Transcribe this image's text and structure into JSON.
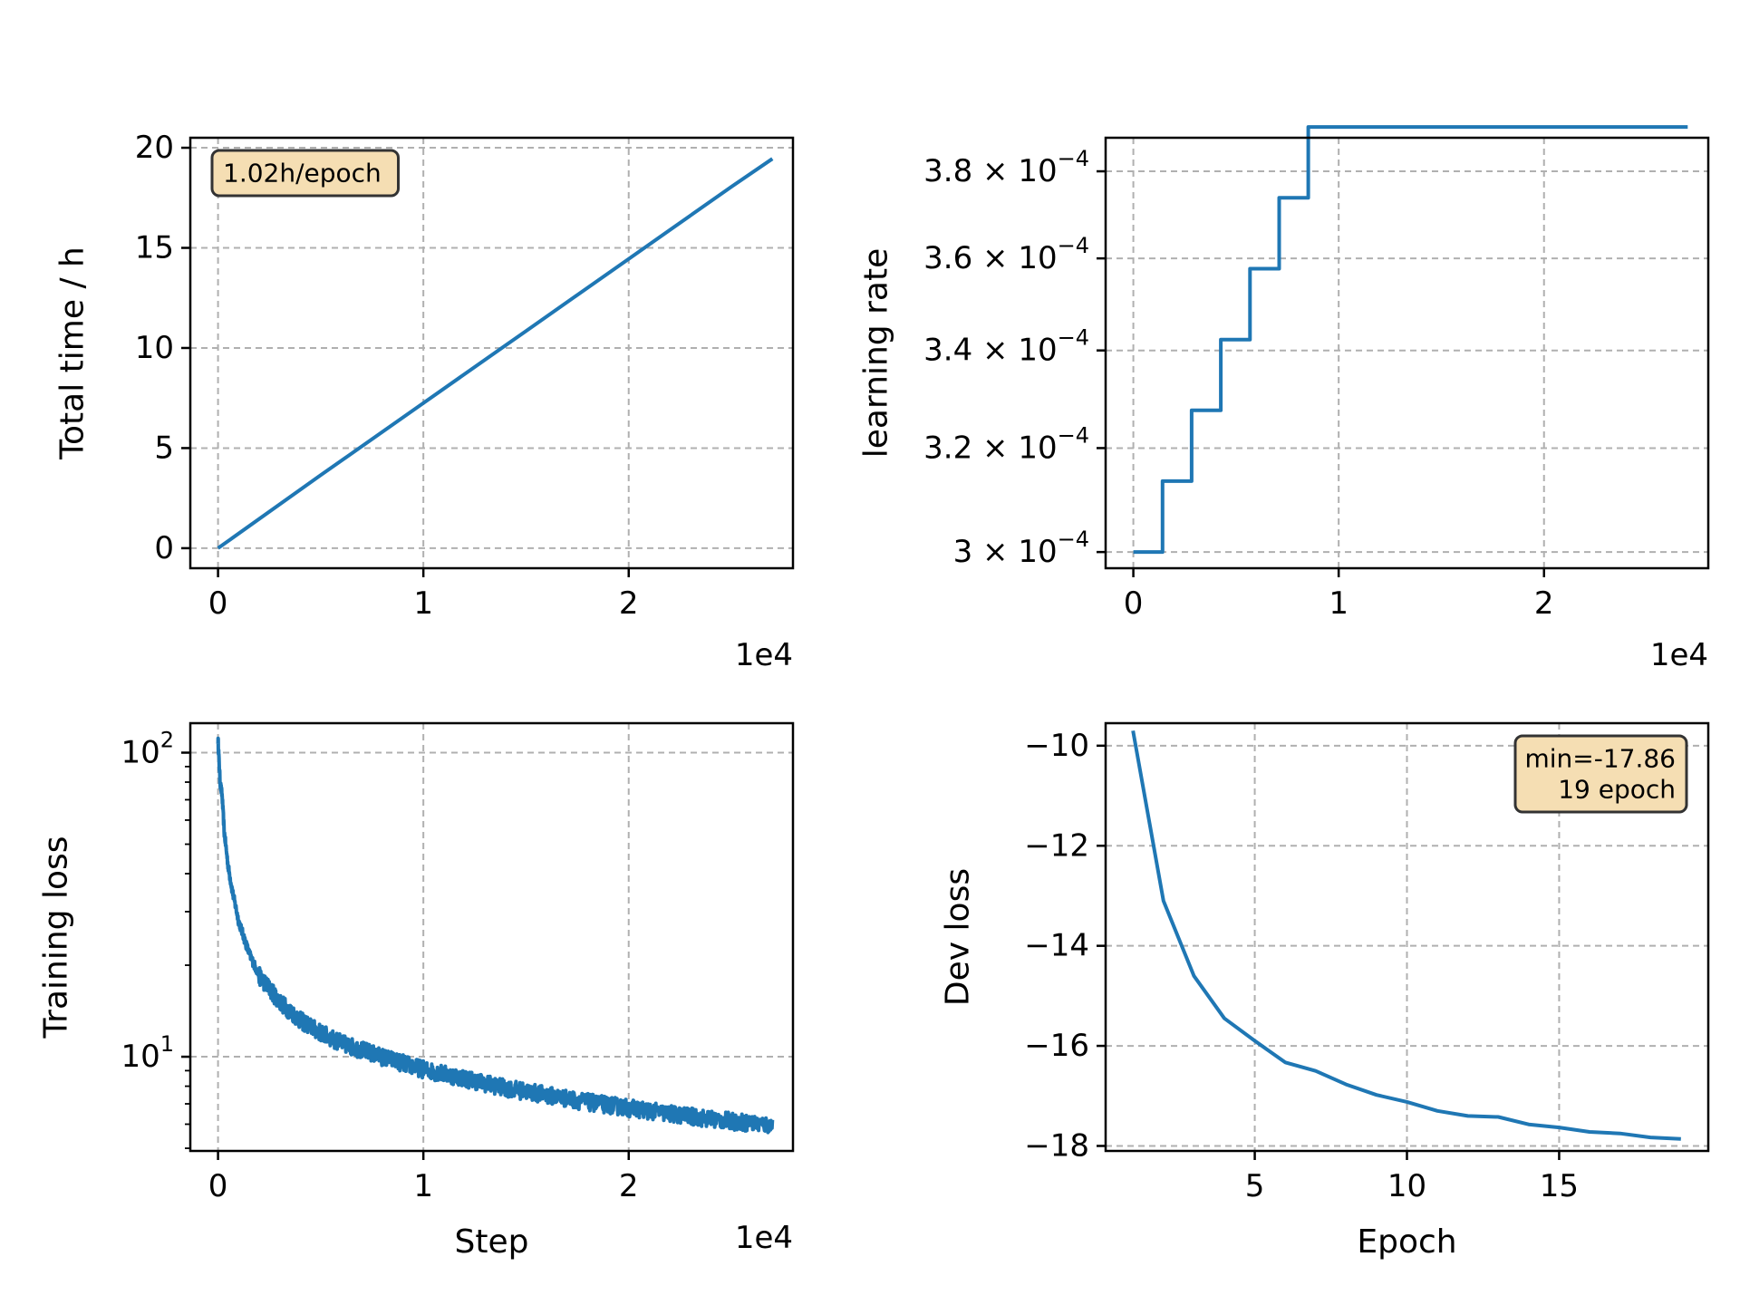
{
  "chart_data": [
    {
      "id": "total-time",
      "type": "line",
      "xlabel": "",
      "ylabel": "Total time / h",
      "xlim": [
        -1350,
        28000
      ],
      "ylim": [
        -1,
        20.5
      ],
      "xticks": [
        0,
        10000,
        20000
      ],
      "xtick_labels": [
        "0",
        "1",
        "2"
      ],
      "x_offset_label": "1e4",
      "yticks": [
        0,
        5,
        10,
        15,
        20
      ],
      "ytick_labels": [
        "0",
        "5",
        "10",
        "15",
        "20"
      ],
      "grid": true,
      "annotation": {
        "lines": [
          "1.02h/epoch"
        ],
        "placement": "top-left"
      },
      "series": [
        {
          "x": [
            0,
            5000,
            10000,
            15000,
            20000,
            25000,
            27000
          ],
          "y": [
            0,
            3.65,
            7.25,
            10.85,
            14.45,
            18.05,
            19.45
          ]
        }
      ]
    },
    {
      "id": "learning-rate",
      "type": "line",
      "xlabel": "",
      "ylabel": "learning rate",
      "y_scale": "log",
      "xlim": [
        -1350,
        28000
      ],
      "ylim": [
        0.000297,
        0.000388
      ],
      "xticks": [
        0,
        10000,
        20000
      ],
      "xtick_labels": [
        "0",
        "1",
        "2"
      ],
      "x_offset_label": "1e4",
      "yticks": [
        0.0003,
        0.00032,
        0.00034,
        0.00036,
        0.00038
      ],
      "ytick_mantissas": [
        "3",
        "3.2",
        "3.4",
        "3.6",
        "3.8"
      ],
      "ytick_base": "10",
      "ytick_exponent": "−4",
      "grid": true,
      "step": true,
      "series": [
        {
          "x": [
            0,
            1420,
            2840,
            4260,
            5680,
            7100,
            8520,
            27000
          ],
          "y": [
            0.0003,
            0.0003135,
            0.0003276,
            0.0003423,
            0.0003577,
            0.0003738,
            0.0003906,
            0.0003906
          ]
        }
      ]
    },
    {
      "id": "training-loss",
      "type": "line",
      "xlabel": "Step",
      "ylabel": "Training loss",
      "y_scale": "log",
      "xlim": [
        -1350,
        28000
      ],
      "ylim": [
        4.9,
        125
      ],
      "xticks": [
        0,
        10000,
        20000
      ],
      "xtick_labels": [
        "0",
        "1",
        "2"
      ],
      "x_offset_label": "1e4",
      "yticks": [
        10,
        100
      ],
      "ytick_base": "10",
      "ytick_exponents": [
        "1",
        "2"
      ],
      "grid": true,
      "noisy": true,
      "series": [
        {
          "x": [
            0,
            100,
            200,
            300,
            500,
            700,
            1000,
            1500,
            2000,
            3000,
            4000,
            5000,
            6000,
            8000,
            10000,
            12000,
            14000,
            16000,
            18000,
            20000,
            22000,
            24000,
            26000,
            27000
          ],
          "y": [
            110,
            80,
            72,
            55,
            42,
            35,
            28,
            22,
            18.5,
            15.2,
            13.2,
            12.0,
            11.1,
            10.0,
            9.1,
            8.5,
            7.9,
            7.5,
            7.1,
            6.8,
            6.5,
            6.25,
            6.05,
            5.95
          ]
        }
      ]
    },
    {
      "id": "dev-loss",
      "type": "line",
      "xlabel": "Epoch",
      "ylabel": "Dev loss",
      "xlim": [
        0.1,
        19.9
      ],
      "ylim": [
        -18.1,
        -9.55
      ],
      "xticks": [
        5,
        10,
        15
      ],
      "xtick_labels": [
        "5",
        "10",
        "15"
      ],
      "yticks": [
        -10,
        -12,
        -14,
        -16,
        -18
      ],
      "ytick_labels": [
        "−10",
        "−12",
        "−14",
        "−16",
        "−18"
      ],
      "grid": true,
      "annotation": {
        "lines": [
          "min=-17.86",
          "19 epoch"
        ],
        "placement": "top-right"
      },
      "series": [
        {
          "x": [
            1,
            2,
            3,
            4,
            5,
            6,
            7,
            8,
            9,
            10,
            11,
            12,
            13,
            14,
            15,
            16,
            17,
            18,
            19
          ],
          "y": [
            -9.7,
            -13.1,
            -14.6,
            -15.45,
            -15.9,
            -16.33,
            -16.5,
            -16.77,
            -16.98,
            -17.12,
            -17.3,
            -17.4,
            -17.42,
            -17.57,
            -17.63,
            -17.72,
            -17.75,
            -17.83,
            -17.86
          ]
        }
      ]
    }
  ]
}
